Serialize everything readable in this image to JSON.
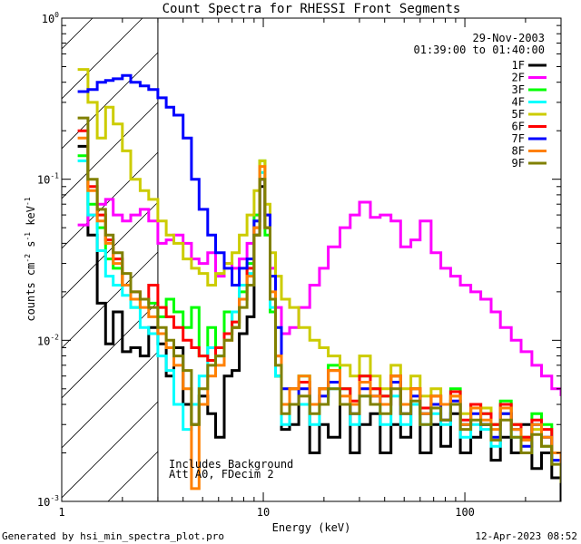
{
  "chart_data": {
    "type": "line",
    "title": "Count Spectra for RHESSI Front Segments",
    "xlabel": "Energy (keV)",
    "ylabel": "counts cm",
    "ylabel_sup1": "-2",
    "ylabel_mid": " s",
    "ylabel_sup2": "-1",
    "ylabel_unit": " keV",
    "ylabel_sup3": "-1",
    "xscale": "log",
    "yscale": "log",
    "xlim": [
      1,
      300
    ],
    "ylim": [
      0.001,
      1
    ],
    "x_ticks": [
      {
        "value": 1,
        "label": "1"
      },
      {
        "value": 10,
        "label": "10"
      },
      {
        "value": 100,
        "label": "100"
      }
    ],
    "y_ticks": [
      {
        "value": 1,
        "base": "10",
        "exp": "0"
      },
      {
        "value": 0.1,
        "base": "10",
        "exp": "-1"
      },
      {
        "value": 0.01,
        "base": "10",
        "exp": "-2"
      },
      {
        "value": 0.001,
        "base": "10",
        "exp": "-3"
      }
    ],
    "date": "29-Nov-2003",
    "time_range": "01:39:00 to 01:40:00",
    "annotations": [
      "Includes Background",
      "Att A0, FDecim 2"
    ],
    "shaded_region_kev": [
      1,
      3
    ],
    "legend_position": "top-right",
    "series": [
      {
        "name": "1F",
        "color": "#000000",
        "x": [
          1.2,
          1.35,
          1.5,
          1.65,
          1.8,
          2.0,
          2.2,
          2.45,
          2.7,
          3.0,
          3.3,
          3.6,
          4.0,
          4.4,
          4.8,
          5.3,
          5.8,
          6.4,
          7.0,
          7.6,
          8.3,
          9.0,
          9.6,
          10.2,
          10.8,
          11.5,
          12.3,
          13.5,
          15,
          17,
          19,
          21,
          24,
          27,
          30,
          34,
          38,
          43,
          48,
          54,
          60,
          68,
          76,
          85,
          95,
          107,
          120,
          135,
          150,
          170,
          190,
          215,
          240,
          270,
          300
        ],
        "y": [
          0.16,
          0.045,
          0.017,
          0.0095,
          0.015,
          0.0085,
          0.009,
          0.008,
          0.012,
          0.0095,
          0.006,
          0.009,
          0.004,
          0.003,
          0.0045,
          0.0035,
          0.0025,
          0.006,
          0.0065,
          0.011,
          0.014,
          0.045,
          0.09,
          0.05,
          0.015,
          0.006,
          0.0028,
          0.003,
          0.004,
          0.002,
          0.003,
          0.0025,
          0.004,
          0.002,
          0.003,
          0.0035,
          0.002,
          0.003,
          0.0025,
          0.004,
          0.002,
          0.003,
          0.0022,
          0.0035,
          0.002,
          0.0025,
          0.003,
          0.0018,
          0.0025,
          0.002,
          0.003,
          0.0016,
          0.002,
          0.0014,
          0.001
        ]
      },
      {
        "name": "2F",
        "color": "#ff00ff",
        "x": [
          1.2,
          1.35,
          1.5,
          1.65,
          1.8,
          2.0,
          2.2,
          2.45,
          2.7,
          3.0,
          3.3,
          3.6,
          4.0,
          4.4,
          4.8,
          5.3,
          5.8,
          6.4,
          7.0,
          7.6,
          8.3,
          9.0,
          9.6,
          10.2,
          10.8,
          11.5,
          12.3,
          13.5,
          15,
          17,
          19,
          21,
          24,
          27,
          30,
          34,
          38,
          43,
          48,
          54,
          60,
          68,
          76,
          85,
          95,
          107,
          120,
          135,
          150,
          170,
          190,
          215,
          240,
          270,
          300
        ],
        "y": [
          0.052,
          0.06,
          0.07,
          0.075,
          0.06,
          0.055,
          0.06,
          0.065,
          0.055,
          0.04,
          0.042,
          0.045,
          0.04,
          0.032,
          0.03,
          0.035,
          0.025,
          0.03,
          0.028,
          0.032,
          0.04,
          0.06,
          0.1,
          0.06,
          0.028,
          0.016,
          0.011,
          0.012,
          0.016,
          0.022,
          0.028,
          0.038,
          0.05,
          0.06,
          0.072,
          0.058,
          0.06,
          0.055,
          0.038,
          0.042,
          0.055,
          0.035,
          0.028,
          0.025,
          0.022,
          0.02,
          0.018,
          0.015,
          0.012,
          0.01,
          0.0085,
          0.007,
          0.006,
          0.005,
          0.0045
        ]
      },
      {
        "name": "3F",
        "color": "#00ff00",
        "x": [
          1.2,
          1.35,
          1.5,
          1.65,
          1.8,
          2.0,
          2.2,
          2.45,
          2.7,
          3.0,
          3.3,
          3.6,
          4.0,
          4.4,
          4.8,
          5.3,
          5.8,
          6.4,
          7.0,
          7.6,
          8.3,
          9.0,
          9.6,
          10.2,
          10.8,
          11.5,
          12.3,
          13.5,
          15,
          17,
          19,
          21,
          24,
          27,
          30,
          34,
          38,
          43,
          48,
          54,
          60,
          68,
          76,
          85,
          95,
          107,
          120,
          135,
          150,
          170,
          190,
          215,
          240,
          270,
          300
        ],
        "y": [
          0.14,
          0.07,
          0.05,
          0.032,
          0.028,
          0.022,
          0.016,
          0.018,
          0.017,
          0.014,
          0.018,
          0.015,
          0.012,
          0.016,
          0.008,
          0.012,
          0.008,
          0.015,
          0.012,
          0.02,
          0.03,
          0.06,
          0.13,
          0.045,
          0.015,
          0.006,
          0.004,
          0.005,
          0.006,
          0.004,
          0.005,
          0.007,
          0.005,
          0.004,
          0.006,
          0.005,
          0.0045,
          0.006,
          0.004,
          0.005,
          0.0035,
          0.0045,
          0.004,
          0.005,
          0.003,
          0.004,
          0.0035,
          0.003,
          0.0042,
          0.003,
          0.0025,
          0.0035,
          0.003,
          0.002,
          0.0015
        ]
      },
      {
        "name": "4F",
        "color": "#00ffff",
        "x": [
          1.2,
          1.35,
          1.5,
          1.65,
          1.8,
          2.0,
          2.2,
          2.45,
          2.7,
          3.0,
          3.3,
          3.6,
          4.0,
          4.4,
          4.8,
          5.3,
          5.8,
          6.4,
          7.0,
          7.6,
          8.3,
          9.0,
          9.6,
          10.2,
          10.8,
          11.5,
          12.3,
          13.5,
          15,
          17,
          19,
          21,
          24,
          27,
          30,
          34,
          38,
          43,
          48,
          54,
          60,
          68,
          76,
          85,
          95,
          107,
          120,
          135,
          150,
          170,
          190,
          215,
          240,
          270,
          300
        ],
        "y": [
          0.13,
          0.06,
          0.036,
          0.025,
          0.022,
          0.019,
          0.016,
          0.012,
          0.011,
          0.008,
          0.0065,
          0.004,
          0.0028,
          0.004,
          0.006,
          0.009,
          0.008,
          0.011,
          0.015,
          0.022,
          0.026,
          0.055,
          0.11,
          0.05,
          0.016,
          0.006,
          0.003,
          0.004,
          0.004,
          0.003,
          0.004,
          0.005,
          0.004,
          0.003,
          0.0045,
          0.004,
          0.003,
          0.0045,
          0.003,
          0.004,
          0.003,
          0.0035,
          0.003,
          0.004,
          0.0025,
          0.003,
          0.0028,
          0.0022,
          0.0035,
          0.0025,
          0.002,
          0.003,
          0.0022,
          0.0018,
          0.0014
        ]
      },
      {
        "name": "5F",
        "color": "#cccc00",
        "x": [
          1.2,
          1.35,
          1.5,
          1.65,
          1.8,
          2.0,
          2.2,
          2.45,
          2.7,
          3.0,
          3.3,
          3.6,
          4.0,
          4.4,
          4.8,
          5.3,
          5.8,
          6.4,
          7.0,
          7.6,
          8.3,
          9.0,
          9.6,
          10.2,
          10.8,
          11.5,
          12.3,
          13.5,
          15,
          17,
          19,
          21,
          24,
          27,
          30,
          34,
          38,
          43,
          48,
          54,
          60,
          68,
          76,
          85,
          95,
          107,
          120,
          135,
          150,
          170,
          190,
          215,
          240,
          270,
          300
        ],
        "y": [
          0.48,
          0.3,
          0.18,
          0.28,
          0.22,
          0.15,
          0.1,
          0.085,
          0.075,
          0.055,
          0.045,
          0.04,
          0.032,
          0.028,
          0.026,
          0.022,
          0.026,
          0.03,
          0.035,
          0.045,
          0.06,
          0.085,
          0.13,
          0.07,
          0.035,
          0.025,
          0.018,
          0.016,
          0.012,
          0.01,
          0.009,
          0.008,
          0.007,
          0.006,
          0.008,
          0.006,
          0.005,
          0.007,
          0.005,
          0.006,
          0.0045,
          0.005,
          0.004,
          0.0045,
          0.0035,
          0.004,
          0.0038,
          0.003,
          0.0035,
          0.003,
          0.0025,
          0.0028,
          0.0022,
          0.002,
          0.0017
        ]
      },
      {
        "name": "6F",
        "color": "#ff0000",
        "x": [
          1.2,
          1.35,
          1.5,
          1.65,
          1.8,
          2.0,
          2.2,
          2.45,
          2.7,
          3.0,
          3.3,
          3.6,
          4.0,
          4.4,
          4.8,
          5.3,
          5.8,
          6.4,
          7.0,
          7.6,
          8.3,
          9.0,
          9.6,
          10.2,
          10.8,
          11.5,
          12.3,
          13.5,
          15,
          17,
          19,
          21,
          24,
          27,
          30,
          34,
          38,
          43,
          48,
          54,
          60,
          68,
          76,
          85,
          95,
          107,
          120,
          135,
          150,
          170,
          190,
          215,
          240,
          270,
          300
        ],
        "y": [
          0.2,
          0.09,
          0.06,
          0.042,
          0.032,
          0.022,
          0.02,
          0.018,
          0.022,
          0.016,
          0.014,
          0.012,
          0.01,
          0.009,
          0.008,
          0.0075,
          0.009,
          0.011,
          0.013,
          0.018,
          0.028,
          0.05,
          0.1,
          0.05,
          0.018,
          0.008,
          0.004,
          0.005,
          0.0055,
          0.004,
          0.005,
          0.0065,
          0.005,
          0.0042,
          0.006,
          0.005,
          0.0045,
          0.006,
          0.004,
          0.005,
          0.0038,
          0.0045,
          0.004,
          0.0048,
          0.0032,
          0.004,
          0.0035,
          0.003,
          0.004,
          0.003,
          0.0025,
          0.0032,
          0.0028,
          0.002,
          0.0017
        ]
      },
      {
        "name": "7F",
        "color": "#0000ff",
        "x": [
          1.2,
          1.35,
          1.5,
          1.65,
          1.8,
          2.0,
          2.2,
          2.45,
          2.7,
          3.0,
          3.3,
          3.6,
          4.0,
          4.4,
          4.8,
          5.3,
          5.8,
          6.4,
          7.0,
          7.6,
          8.3,
          9.0,
          9.6,
          10.2,
          10.8,
          11.5,
          12.3,
          13.5,
          15,
          17,
          19,
          21,
          24,
          27,
          30,
          34,
          38,
          43,
          48,
          54,
          60,
          68,
          76,
          85,
          95,
          107,
          120,
          135,
          150,
          170,
          190,
          215,
          240,
          270,
          300
        ],
        "y": [
          0.35,
          0.36,
          0.4,
          0.41,
          0.42,
          0.44,
          0.4,
          0.38,
          0.36,
          0.32,
          0.28,
          0.25,
          0.18,
          0.1,
          0.065,
          0.045,
          0.035,
          0.028,
          0.022,
          0.028,
          0.032,
          0.055,
          0.1,
          0.06,
          0.025,
          0.012,
          0.005,
          0.004,
          0.005,
          0.004,
          0.0045,
          0.0055,
          0.004,
          0.0035,
          0.005,
          0.0045,
          0.004,
          0.0055,
          0.0035,
          0.0045,
          0.0035,
          0.004,
          0.0032,
          0.0042,
          0.003,
          0.0035,
          0.003,
          0.0025,
          0.0035,
          0.0028,
          0.0022,
          0.003,
          0.0025,
          0.0018,
          0.0015
        ]
      },
      {
        "name": "8F",
        "color": "#ff8000",
        "x": [
          1.2,
          1.35,
          1.5,
          1.65,
          1.8,
          2.0,
          2.2,
          2.45,
          2.7,
          3.0,
          3.3,
          3.6,
          4.0,
          4.4,
          4.8,
          5.3,
          5.8,
          6.4,
          7.0,
          7.6,
          8.3,
          9.0,
          9.6,
          10.2,
          10.8,
          11.5,
          12.3,
          13.5,
          15,
          17,
          19,
          21,
          24,
          27,
          30,
          34,
          38,
          43,
          48,
          54,
          60,
          68,
          76,
          85,
          95,
          107,
          120,
          135,
          150,
          170,
          190,
          215,
          240,
          270,
          300
        ],
        "y": [
          0.18,
          0.085,
          0.055,
          0.04,
          0.03,
          0.022,
          0.018,
          0.016,
          0.014,
          0.011,
          0.009,
          0.007,
          0.005,
          0.0012,
          0.004,
          0.006,
          0.007,
          0.01,
          0.012,
          0.018,
          0.025,
          0.05,
          0.12,
          0.05,
          0.02,
          0.008,
          0.004,
          0.005,
          0.006,
          0.004,
          0.005,
          0.0065,
          0.0045,
          0.004,
          0.0055,
          0.0045,
          0.004,
          0.006,
          0.004,
          0.005,
          0.0035,
          0.0045,
          0.004,
          0.0045,
          0.003,
          0.0038,
          0.0032,
          0.0028,
          0.0038,
          0.0028,
          0.0024,
          0.003,
          0.0025,
          0.002,
          0.0016
        ]
      },
      {
        "name": "9F",
        "color": "#808000",
        "x": [
          1.2,
          1.35,
          1.5,
          1.65,
          1.8,
          2.0,
          2.2,
          2.45,
          2.7,
          3.0,
          3.3,
          3.6,
          4.0,
          4.4,
          4.8,
          5.3,
          5.8,
          6.4,
          7.0,
          7.6,
          8.3,
          9.0,
          9.6,
          10.2,
          10.8,
          11.5,
          12.3,
          13.5,
          15,
          17,
          19,
          21,
          24,
          27,
          30,
          34,
          38,
          43,
          48,
          54,
          60,
          68,
          76,
          85,
          95,
          107,
          120,
          135,
          150,
          170,
          190,
          215,
          240,
          270,
          300
        ],
        "y": [
          0.24,
          0.1,
          0.065,
          0.045,
          0.035,
          0.026,
          0.02,
          0.018,
          0.016,
          0.012,
          0.01,
          0.008,
          0.0065,
          0.003,
          0.005,
          0.007,
          0.008,
          0.01,
          0.012,
          0.016,
          0.022,
          0.045,
          0.1,
          0.05,
          0.018,
          0.007,
          0.0035,
          0.004,
          0.0045,
          0.0035,
          0.004,
          0.005,
          0.004,
          0.0035,
          0.0045,
          0.004,
          0.0035,
          0.005,
          0.0035,
          0.0042,
          0.003,
          0.0038,
          0.0032,
          0.004,
          0.0028,
          0.0032,
          0.003,
          0.0024,
          0.0032,
          0.0025,
          0.002,
          0.0026,
          0.0022,
          0.0017,
          0.0013
        ]
      }
    ]
  },
  "footer": {
    "generated_by": "Generated by hsi_min_spectra_plot.pro",
    "timestamp": "12-Apr-2023 08:52"
  }
}
